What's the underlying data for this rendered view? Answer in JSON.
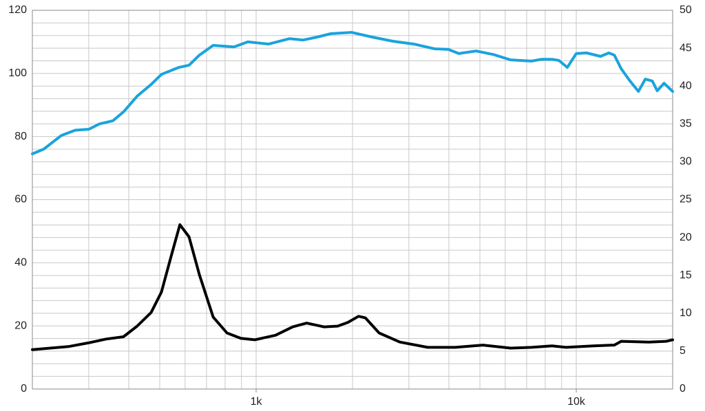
{
  "chart_data": {
    "type": "line",
    "xscale": "log",
    "xlim": [
      200,
      20000
    ],
    "xticks": [
      {
        "value": 1000,
        "label": "1k"
      },
      {
        "value": 10000,
        "label": "10k"
      }
    ],
    "xgrid": [
      200,
      300,
      400,
      500,
      600,
      700,
      800,
      900,
      1000,
      2000,
      3000,
      4000,
      5000,
      6000,
      7000,
      8000,
      9000,
      10000,
      20000
    ],
    "ylim": [
      0,
      120
    ],
    "yticks": [
      0,
      20,
      40,
      60,
      80,
      100,
      120
    ],
    "ygrid": [
      0,
      4,
      8,
      12,
      16,
      20,
      24,
      28,
      32,
      36,
      40,
      44,
      48,
      52,
      56,
      60,
      64,
      68,
      72,
      76,
      80,
      84,
      88,
      92,
      96,
      100,
      104,
      108,
      112,
      116,
      120
    ],
    "y2lim": [
      0,
      50
    ],
    "y2ticks": [
      0,
      5,
      10,
      15,
      20,
      25,
      30,
      35,
      40,
      45,
      50
    ],
    "grid": true,
    "series": [
      {
        "color": "#1aa3dd",
        "axis": "y",
        "x": [
          200,
          217,
          246,
          272,
          300,
          324,
          357,
          385,
          425,
          470,
          506,
          573,
          617,
          665,
          734,
          853,
          942,
          1094,
          1270,
          1403,
          1549,
          1711,
          1986,
          2306,
          2676,
          3107,
          3608,
          3984,
          4295,
          4864,
          5508,
          6237,
          7244,
          7803,
          8400,
          8831,
          9376,
          10000,
          10770,
          11900,
          12640,
          13150,
          13810,
          14660,
          15640,
          16430,
          17280,
          17900,
          18800,
          20000
        ],
        "values": [
          74.5,
          76,
          80.3,
          82,
          82.3,
          84,
          85,
          87.8,
          92.8,
          96.5,
          99.7,
          101.9,
          102.6,
          105.8,
          108.9,
          108.4,
          110,
          109.3,
          111,
          110.6,
          111.5,
          112.6,
          113,
          111.5,
          110.2,
          109.3,
          107.8,
          107.6,
          106.3,
          107.1,
          106,
          104.3,
          103.9,
          104.5,
          104.5,
          104.1,
          101.9,
          106.3,
          106.5,
          105.4,
          106.5,
          105.8,
          101.5,
          97.8,
          94.3,
          98.2,
          97.6,
          94.5,
          96.9,
          94.3
        ]
      },
      {
        "color": "#000000",
        "axis": "y2",
        "x": [
          200,
          259,
          300,
          340,
          385,
          425,
          470,
          506,
          545,
          578,
          617,
          665,
          734,
          811,
          896,
          990,
          1149,
          1301,
          1438,
          1629,
          1798,
          1937,
          2089,
          2193,
          2423,
          2812,
          3434,
          4188,
          5109,
          6237,
          7244,
          8400,
          9290,
          11320,
          13150,
          13810,
          16850,
          19100,
          20000
        ],
        "values": [
          5.2,
          5.6,
          6.1,
          6.6,
          6.9,
          8.3,
          10.1,
          12.8,
          17.8,
          21.7,
          20.1,
          15.1,
          9.5,
          7.4,
          6.7,
          6.5,
          7.1,
          8.2,
          8.7,
          8.2,
          8.3,
          8.8,
          9.6,
          9.4,
          7.4,
          6.2,
          5.5,
          5.5,
          5.8,
          5.4,
          5.5,
          5.7,
          5.5,
          5.7,
          5.8,
          6.3,
          6.2,
          6.3,
          6.5
        ]
      }
    ]
  }
}
